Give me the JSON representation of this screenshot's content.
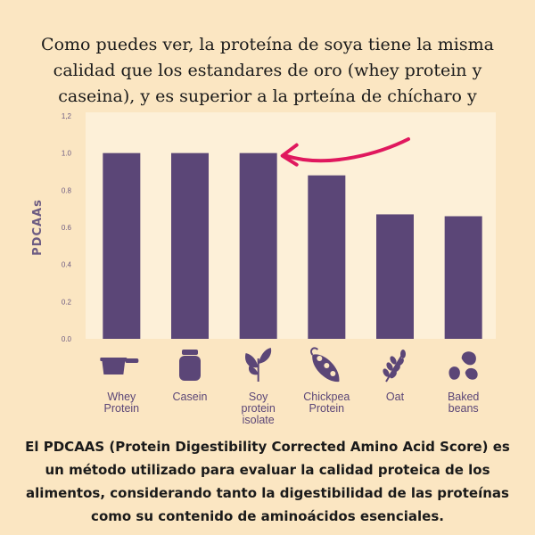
{
  "headline": "Como puedes ver, la proteína de soya tiene la misma calidad que los estandares de oro (whey protein y caseina), y es superior a la prteína de chícharo y otras leguminosas",
  "caption": "El PDCAAS (Protein Digestibility Corrected Amino Acid Score) es un método utilizado para evaluar la calidad proteica de los alimentos, considerando tanto la digestibilidad de las proteínas como su contenido de aminoácidos esenciales.",
  "colors": {
    "bar": "#5b4677",
    "axis_text": "#6c5b82",
    "arrow": "#e0185e",
    "grid": "#d8c9ae"
  },
  "chart_data": {
    "type": "bar",
    "ylabel": "PDCAAs",
    "ylim": [
      0,
      1.2
    ],
    "yticks": [
      "0.0",
      "0.2",
      "0.4",
      "0.6",
      "0.8",
      "1.0",
      "1,2"
    ],
    "categories": [
      {
        "label": [
          "Whey",
          "Protein"
        ],
        "icon": "protein-scoop-icon"
      },
      {
        "label": [
          "Casein"
        ],
        "icon": "jar-icon"
      },
      {
        "label": [
          "Soy",
          "protein",
          "isolate"
        ],
        "icon": "soy-plant-icon"
      },
      {
        "label": [
          "Chickpea",
          "Protein"
        ],
        "icon": "pea-pod-icon"
      },
      {
        "label": [
          "Oat"
        ],
        "icon": "oat-icon"
      },
      {
        "label": [
          "Baked",
          "beans"
        ],
        "icon": "beans-icon"
      }
    ],
    "values": [
      1.0,
      1.0,
      1.0,
      0.88,
      0.67,
      0.66
    ],
    "grid": false,
    "annotation": "arrow pointing to Soy protein isolate bar"
  }
}
